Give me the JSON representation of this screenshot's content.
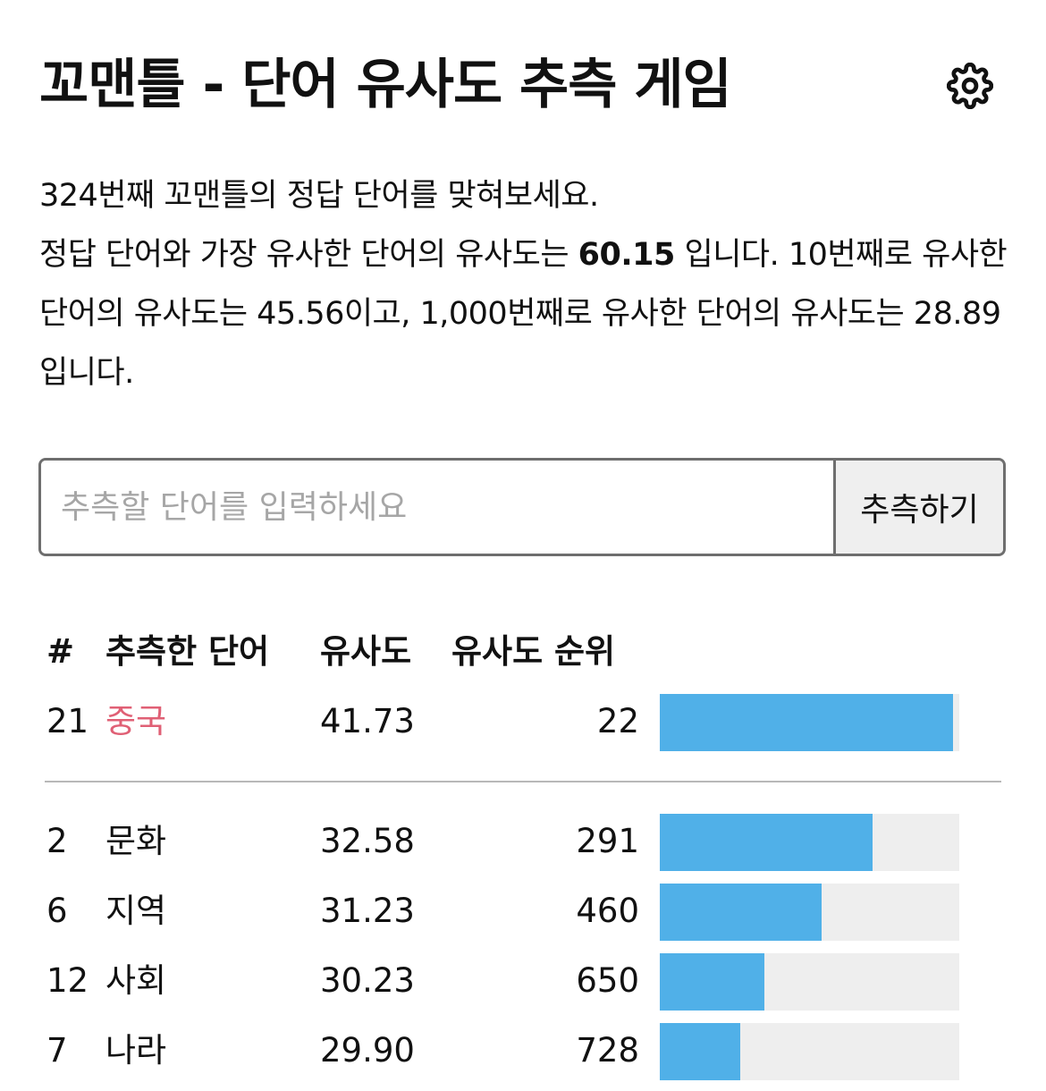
{
  "header": {
    "title": "꼬맨틀 - 단어 유사도 추측 게임",
    "settings_icon": "gear-icon"
  },
  "description": {
    "line1": "324번째 꼬맨틀의 정답 단어를 맞혀보세요.",
    "line2_prefix": "정답 단어와 가장 유사한 단어의 유사도는 ",
    "top_similarity": "60.15",
    "line2_suffix": " 입니다. 10번째로 유사한 단어의 유사도는 45.56이고, 1,000번째로 유사한 단어의 유사도는 28.89 입니다."
  },
  "guess_form": {
    "placeholder": "추측할 단어를 입력하세요",
    "value": "",
    "button_label": "추측하기"
  },
  "table": {
    "headers": {
      "num": "#",
      "word": "추측한 단어",
      "similarity": "유사도",
      "rank": "유사도 순위"
    },
    "latest": {
      "num": "21",
      "word": "중국",
      "similarity": "41.73",
      "rank": "22",
      "bar_fraction": 0.98
    },
    "rows": [
      {
        "num": "2",
        "word": "문화",
        "similarity": "32.58",
        "rank": "291",
        "bar_fraction": 0.71
      },
      {
        "num": "6",
        "word": "지역",
        "similarity": "31.23",
        "rank": "460",
        "bar_fraction": 0.54
      },
      {
        "num": "12",
        "word": "사회",
        "similarity": "30.23",
        "rank": "650",
        "bar_fraction": 0.35
      },
      {
        "num": "7",
        "word": "나라",
        "similarity": "29.90",
        "rank": "728",
        "bar_fraction": 0.27
      }
    ]
  },
  "colors": {
    "highlight": "#e06075",
    "bar": "#50b0e8",
    "bar_track": "#eeeeee"
  }
}
